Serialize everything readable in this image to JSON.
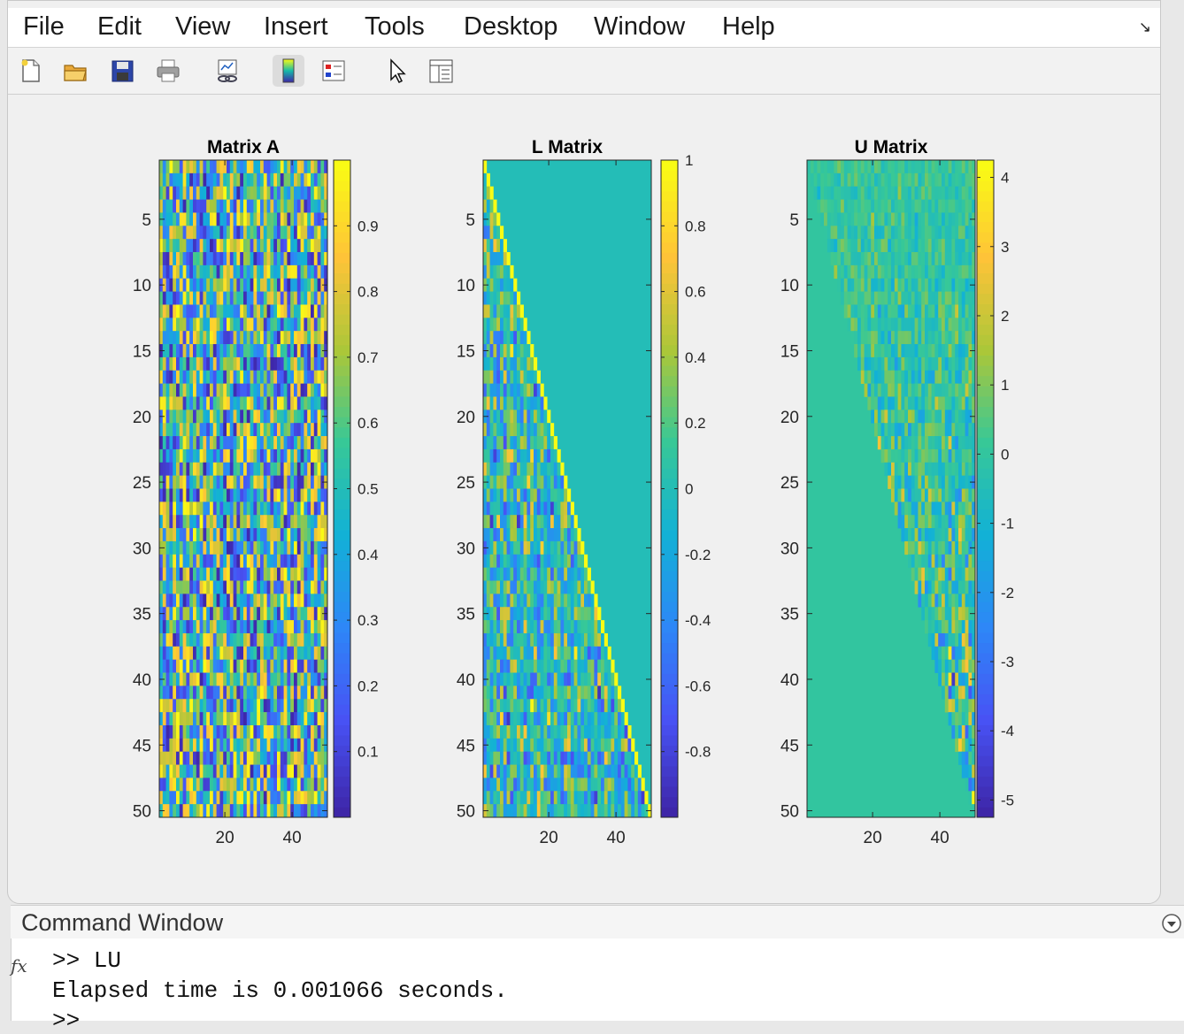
{
  "menubar": {
    "items": [
      "File",
      "Edit",
      "View",
      "Insert",
      "Tools",
      "Desktop",
      "Window",
      "Help"
    ],
    "dock_icon": "dock-arrow-icon"
  },
  "toolbar": {
    "buttons": [
      "new-figure-icon",
      "open-file-icon",
      "save-icon",
      "print-icon",
      "link-plot-icon",
      "insert-colorbar-icon",
      "insert-legend-icon",
      "edit-plot-icon",
      "property-inspector-icon"
    ],
    "pressed": "insert-colorbar-icon"
  },
  "colormap": "parula",
  "chart_data": [
    {
      "type": "heatmap",
      "title": "Matrix A",
      "rows": 50,
      "cols": 50,
      "y_ticks": [
        5,
        10,
        15,
        20,
        25,
        30,
        35,
        40,
        45,
        50
      ],
      "x_ticks": [
        20,
        40
      ],
      "structure": "full",
      "clim": [
        0.0,
        1.0
      ],
      "colorbar_ticks": [
        0.1,
        0.2,
        0.3,
        0.4,
        0.5,
        0.6,
        0.7,
        0.8,
        0.9
      ]
    },
    {
      "type": "heatmap",
      "title": "L Matrix",
      "rows": 50,
      "cols": 50,
      "y_ticks": [
        5,
        10,
        15,
        20,
        25,
        30,
        35,
        40,
        45,
        50
      ],
      "x_ticks": [
        20,
        40
      ],
      "structure": "lower-triangular",
      "clim": [
        -1.0,
        1.0
      ],
      "colorbar_ticks": [
        -0.8,
        -0.6,
        -0.4,
        -0.2,
        0,
        0.2,
        0.4,
        0.6,
        0.8,
        1
      ]
    },
    {
      "type": "heatmap",
      "title": "U Matrix",
      "rows": 50,
      "cols": 50,
      "y_ticks": [
        5,
        10,
        15,
        20,
        25,
        30,
        35,
        40,
        45,
        50
      ],
      "x_ticks": [
        20,
        40
      ],
      "structure": "upper-triangular",
      "clim": [
        -5.25,
        4.25
      ],
      "colorbar_ticks": [
        -5,
        -4,
        -3,
        -2,
        -1,
        0,
        1,
        2,
        3,
        4
      ]
    }
  ],
  "command_window": {
    "title": "Command Window",
    "lines": [
      ">> LU",
      "Elapsed time is 0.001066 seconds.",
      ">>"
    ],
    "fx_label": "fx"
  }
}
